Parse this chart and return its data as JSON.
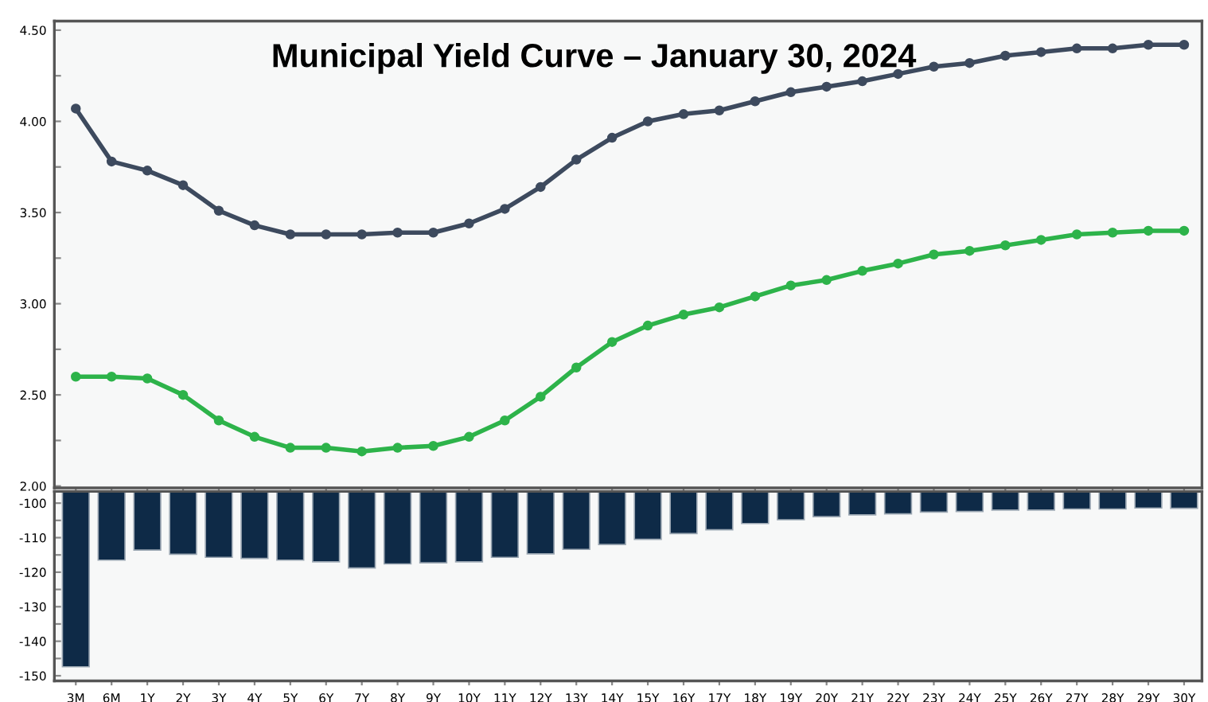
{
  "chart_data": [
    {
      "type": "line",
      "title": "Municipal Yield Curve – January 30, 2024",
      "categories": [
        null,
        null,
        null,
        null,
        null,
        null,
        null,
        null,
        null,
        null,
        null,
        null,
        null,
        null,
        null,
        null,
        null,
        null,
        null,
        null,
        null,
        null,
        null,
        null,
        null,
        null,
        null,
        null,
        null,
        null,
        null,
        null
      ],
      "series": [
        {
          "color": "#3d4a5e",
          "values": [
            4.07,
            3.78,
            3.73,
            3.65,
            3.51,
            3.43,
            3.38,
            3.38,
            3.38,
            3.39,
            3.39,
            3.44,
            3.52,
            3.64,
            3.79,
            3.91,
            4.0,
            4.04,
            4.06,
            4.11,
            4.16,
            4.19,
            4.22,
            4.26,
            4.3,
            4.32,
            4.36,
            4.38,
            4.4,
            4.4,
            4.42,
            4.42
          ]
        },
        {
          "color": "#2db34a",
          "values": [
            2.6,
            2.6,
            2.59,
            2.5,
            2.36,
            2.27,
            2.21,
            2.21,
            2.19,
            2.21,
            2.22,
            2.27,
            2.36,
            2.49,
            2.65,
            2.79,
            2.88,
            2.94,
            2.98,
            3.04,
            3.1,
            3.13,
            3.18,
            3.22,
            3.27,
            3.29,
            3.32,
            3.35,
            3.38,
            3.39,
            3.4,
            3.4
          ]
        }
      ],
      "ylim": [
        1.99,
        4.55
      ],
      "yticks": [
        {
          "value": 2.0,
          "label": "2.00"
        },
        {
          "value": 2.25,
          "label": null
        },
        {
          "value": 2.5,
          "label": "2.50"
        },
        {
          "value": 2.75,
          "label": null
        },
        {
          "value": 3.0,
          "label": "3.00"
        },
        {
          "value": 3.25,
          "label": null
        },
        {
          "value": 3.5,
          "label": "3.50"
        },
        {
          "value": 3.75,
          "label": null
        },
        {
          "value": 4.0,
          "label": "4.00"
        },
        {
          "value": 4.25,
          "label": null
        },
        {
          "value": 4.5,
          "label": "4.50"
        }
      ],
      "marker": "circle",
      "line_style": "solid",
      "grid": false,
      "tick_labels": "y"
    },
    {
      "type": "bar",
      "categories": [
        "3M",
        "6M",
        "1Y",
        "2Y",
        "3Y",
        "4Y",
        "5Y",
        "6Y",
        "7Y",
        "8Y",
        "9Y",
        "10Y",
        "11Y",
        "12Y",
        "13Y",
        "14Y",
        "15Y",
        "16Y",
        "17Y",
        "18Y",
        "19Y",
        "20Y",
        "21Y",
        "22Y",
        "23Y",
        "24Y",
        "25Y",
        "26Y",
        "27Y",
        "28Y",
        "29Y",
        "30Y"
      ],
      "base": [
        -96.6,
        -96.6,
        -96.6,
        -96.6,
        -96.6,
        -96.6,
        -96.6,
        -96.6,
        -96.6,
        -96.6,
        -96.6,
        -96.6,
        -96.6,
        -96.6,
        -96.6,
        -96.6,
        -96.6,
        -96.6,
        -96.6,
        -96.6,
        -96.6,
        -96.6,
        -96.6,
        -96.6,
        -96.6,
        -96.6,
        -96.6,
        -96.6,
        -96.6,
        -96.6,
        -96.6,
        -96.6
      ],
      "values": [
        -50.8,
        -19.9,
        -17.0,
        -18.2,
        -19.1,
        -19.4,
        -19.9,
        -20.4,
        -22.2,
        -21.0,
        -20.7,
        -20.4,
        -19.1,
        -18.1,
        -16.8,
        -15.4,
        -13.9,
        -12.2,
        -11.1,
        -9.3,
        -8.2,
        -7.3,
        -6.8,
        -6.5,
        -6.0,
        -5.8,
        -5.4,
        -5.4,
        -5.1,
        -5.1,
        -4.8,
        -4.9
      ],
      "color": "#0e2a47",
      "ylim": [
        -151.5,
        -96.6
      ],
      "yticks": [
        -100,
        {
          "value": -105,
          "label": null
        },
        -110,
        {
          "value": -115,
          "label": null
        },
        -120,
        {
          "value": -125,
          "label": null
        },
        -130,
        {
          "value": -135,
          "label": null
        },
        -140,
        {
          "value": -145,
          "label": null
        },
        -150
      ],
      "grid": false
    }
  ]
}
